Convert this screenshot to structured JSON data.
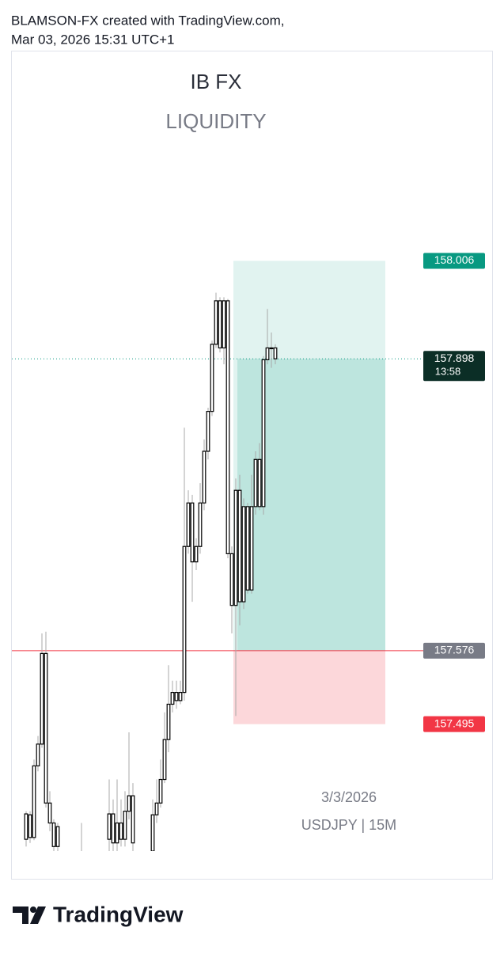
{
  "header": {
    "line1": "BLAMSON-FX created with TradingView.com,",
    "line2": "Mar 03, 2026 15:31 UTC+1"
  },
  "footer": {
    "logo": "TradingView"
  },
  "chart_data": {
    "type": "candlestick",
    "title": "IB FX",
    "subtitle": "LIQUIDITY",
    "annotations": [
      "3/3/2026",
      "USDJPY | 15M"
    ],
    "x": [
      0,
      1,
      2,
      3,
      4,
      5,
      6,
      7,
      8,
      14,
      21,
      22,
      23,
      24,
      25,
      26,
      27,
      32,
      33,
      34,
      35,
      36,
      37,
      38,
      39,
      40,
      41,
      42,
      43,
      44,
      45,
      46,
      47,
      48,
      49,
      50,
      51,
      52,
      53,
      54,
      55,
      56,
      57,
      58,
      59,
      60,
      61,
      62,
      63
    ],
    "open": [
      157.368,
      157.395,
      157.37,
      157.449,
      157.473,
      157.573,
      157.408,
      157.386,
      157.36,
      157.342,
      157.368,
      157.396,
      157.364,
      157.386,
      157.368,
      157.399,
      157.416,
      157.355,
      157.395,
      157.408,
      157.434,
      157.478,
      157.517,
      157.53,
      157.521,
      157.53,
      157.691,
      157.739,
      157.674,
      157.691,
      157.739,
      157.796,
      157.84,
      157.914,
      157.962,
      157.91,
      157.962,
      157.683,
      157.626,
      157.753,
      157.63,
      157.735,
      157.643,
      157.735,
      157.787,
      157.735,
      157.897,
      157.91,
      157.91
    ],
    "high": [
      157.399,
      157.399,
      157.456,
      157.482,
      157.595,
      157.597,
      157.421,
      157.39,
      157.386,
      157.386,
      157.434,
      157.412,
      157.434,
      157.412,
      157.421,
      157.486,
      157.43,
      157.412,
      157.434,
      157.456,
      157.508,
      157.56,
      157.543,
      157.543,
      157.543,
      157.822,
      157.753,
      157.748,
      157.7,
      157.761,
      157.809,
      157.844,
      157.918,
      157.971,
      157.966,
      157.966,
      157.964,
      157.691,
      157.766,
      157.77,
      157.744,
      157.739,
      157.77,
      157.796,
      157.805,
      157.901,
      157.953,
      157.927,
      157.914
    ],
    "low": [
      157.36,
      157.364,
      157.367,
      157.443,
      157.469,
      157.403,
      157.377,
      157.355,
      157.355,
      157.334,
      157.355,
      157.355,
      157.355,
      157.36,
      157.36,
      157.39,
      157.355,
      157.342,
      157.386,
      157.403,
      157.43,
      157.464,
      157.508,
      157.512,
      157.517,
      157.521,
      157.683,
      157.63,
      157.665,
      157.683,
      157.731,
      157.787,
      157.835,
      157.91,
      157.905,
      157.892,
      157.678,
      157.595,
      157.504,
      157.604,
      157.622,
      157.639,
      157.639,
      157.726,
      157.731,
      157.726,
      157.892,
      157.888,
      157.892
    ],
    "close": [
      157.396,
      157.37,
      157.449,
      157.473,
      157.573,
      157.408,
      157.386,
      157.36,
      157.382,
      157.351,
      157.396,
      157.364,
      157.386,
      157.368,
      157.399,
      157.416,
      157.364,
      157.395,
      157.408,
      157.434,
      157.478,
      157.517,
      157.53,
      157.521,
      157.53,
      157.691,
      157.739,
      157.674,
      157.691,
      157.739,
      157.796,
      157.84,
      157.914,
      157.962,
      157.91,
      157.962,
      157.683,
      157.626,
      157.753,
      157.63,
      157.735,
      157.643,
      157.735,
      157.787,
      157.735,
      157.897,
      157.91,
      157.91,
      157.898
    ],
    "ylim": [
      157.355,
      158.237
    ],
    "body_color": "#ffffff",
    "border_color": "#000000",
    "wick_color": "#a8a8a8",
    "position": {
      "target": 158.006,
      "entry": 157.576,
      "stop": 157.495
    },
    "last_price": 157.898,
    "countdown": "13:58"
  }
}
